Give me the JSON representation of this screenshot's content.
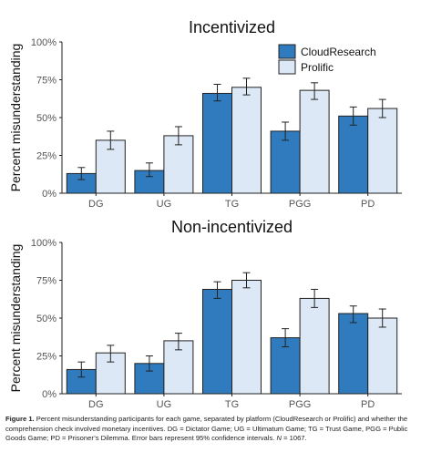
{
  "chart_data": [
    {
      "type": "bar",
      "title": "Incentivized",
      "ylabel": "Percent misunderstanding",
      "xlabel": "",
      "categories": [
        "DG",
        "UG",
        "TG",
        "PGG",
        "PD"
      ],
      "yticks": [
        "0%",
        "25%",
        "50%",
        "75%",
        "100%"
      ],
      "ylim": [
        0,
        100
      ],
      "legend": "top-right",
      "series": [
        {
          "name": "CloudResearch",
          "color": "#2f7bbe",
          "values": [
            13,
            15,
            66,
            41,
            51
          ],
          "ci": [
            [
              9,
              17
            ],
            [
              11,
              20
            ],
            [
              61,
              72
            ],
            [
              35,
              47
            ],
            [
              45,
              57
            ]
          ]
        },
        {
          "name": "Prolific",
          "color": "#dce8f5",
          "values": [
            35,
            38,
            70,
            68,
            56
          ],
          "ci": [
            [
              29,
              41
            ],
            [
              32,
              44
            ],
            [
              65,
              76
            ],
            [
              62,
              73
            ],
            [
              50,
              62
            ]
          ]
        }
      ]
    },
    {
      "type": "bar",
      "title": "Non-incentivized",
      "ylabel": "Percent misunderstanding",
      "xlabel": "",
      "categories": [
        "DG",
        "UG",
        "TG",
        "PGG",
        "PD"
      ],
      "yticks": [
        "0%",
        "25%",
        "50%",
        "75%",
        "100%"
      ],
      "ylim": [
        0,
        100
      ],
      "series": [
        {
          "name": "CloudResearch",
          "color": "#2f7bbe",
          "values": [
            16,
            20,
            69,
            37,
            53
          ],
          "ci": [
            [
              11,
              21
            ],
            [
              15,
              25
            ],
            [
              63,
              74
            ],
            [
              31,
              43
            ],
            [
              47,
              58
            ]
          ]
        },
        {
          "name": "Prolific",
          "color": "#dce8f5",
          "values": [
            27,
            35,
            75,
            63,
            50
          ],
          "ci": [
            [
              21,
              32
            ],
            [
              29,
              40
            ],
            [
              70,
              80
            ],
            [
              57,
              69
            ],
            [
              44,
              56
            ]
          ]
        }
      ]
    }
  ],
  "caption": {
    "label": "Figure 1.",
    "text": " Percent misunderstanding participants for each game, separated by platform (CloudResearch or Prolific) and whether the comprehension check involved monetary incentives. DG = Dictator Game; UG = Ultimatum Game; TG = Trust Game, PGG = Public Goods Game; PD = Prisoner’s Dilemma. Error bars represent 95% confidence intervals. ",
    "n_label": "N",
    "n_text": " = 1067."
  }
}
